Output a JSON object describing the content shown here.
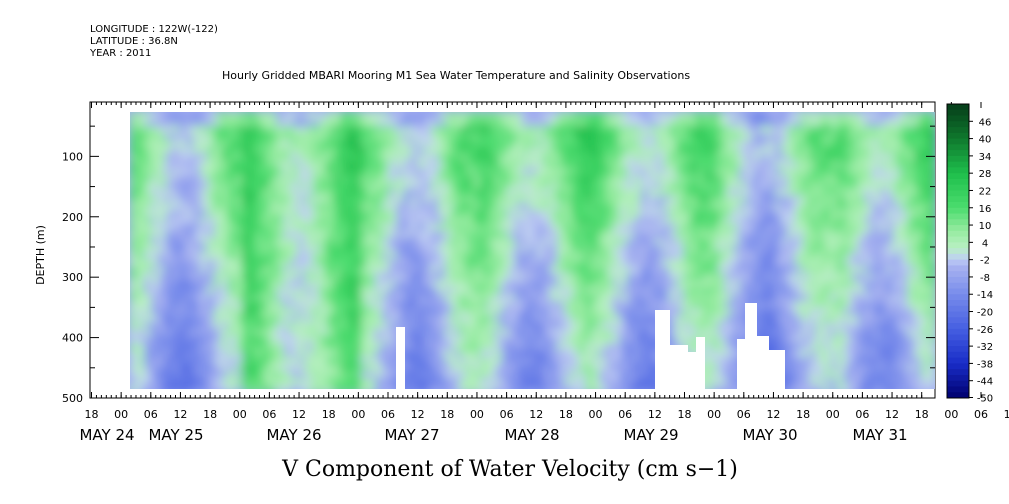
{
  "header": {
    "longitude": "LONGITUDE : 122W(-122)",
    "latitude": "LATITUDE : 36.8N",
    "year": "YEAR : 2011",
    "title": "Hourly Gridded MBARI Mooring M1 Sea Water Temperature and Salinity Observations"
  },
  "chart_data": {
    "type": "heatmap",
    "title": "Hourly Gridded MBARI Mooring M1 Sea Water Temperature and Salinity Observations",
    "xlabel": "",
    "ylabel": "DEPTH (m)",
    "zlabel": "V Component of Water Velocity (cm s−1)",
    "x_hour_ticks": [
      "18",
      "00",
      "06",
      "12",
      "18",
      "00",
      "06",
      "12",
      "18",
      "00",
      "06",
      "12",
      "18",
      "00",
      "06",
      "12",
      "18",
      "00",
      "06",
      "12",
      "18",
      "00",
      "06",
      "12",
      "18",
      "00",
      "06",
      "12",
      "18",
      "00",
      "06",
      "12",
      "18"
    ],
    "x_day_labels": [
      "MAY 24",
      "MAY 25",
      "MAY 26",
      "MAY 27",
      "MAY 28",
      "MAY 29",
      "MAY 30",
      "MAY 31"
    ],
    "y_ticks": [
      100,
      200,
      300,
      400,
      500
    ],
    "ylim": [
      500,
      10
    ],
    "colorbar_levels": [
      46,
      40,
      34,
      28,
      22,
      16,
      10,
      4,
      -2,
      -8,
      -14,
      -20,
      -26,
      -32,
      -38,
      -44,
      -50
    ],
    "colorbar_range": [
      -50,
      52
    ],
    "colors": {
      "strong_negative": "#000070",
      "negative": "#5a6fe0",
      "weak_negative": "#a9b7f0",
      "weak_positive": "#a8f0b0",
      "positive": "#3ed45c",
      "strong_positive": "#0c4d1c"
    },
    "data_grid": {
      "day_bands": [
        {
          "day": "MAY 24 18h-MAY 25 00h",
          "v_upper": -6,
          "v_lower": -4
        },
        {
          "day": "MAY 25",
          "v_upper": 10,
          "v_lower": -10
        },
        {
          "day": "MAY 26",
          "v_upper": 14,
          "v_lower": 8
        },
        {
          "day": "MAY 27",
          "v_upper": 10,
          "v_lower": -8
        },
        {
          "day": "MAY 28",
          "v_upper": 16,
          "v_lower": -8
        },
        {
          "day": "MAY 29",
          "v_upper": 14,
          "v_lower": -10
        },
        {
          "day": "MAY 30",
          "v_upper": 8,
          "v_lower": -12
        },
        {
          "day": "MAY 31",
          "v_upper": 16,
          "v_lower": -8
        }
      ]
    }
  }
}
